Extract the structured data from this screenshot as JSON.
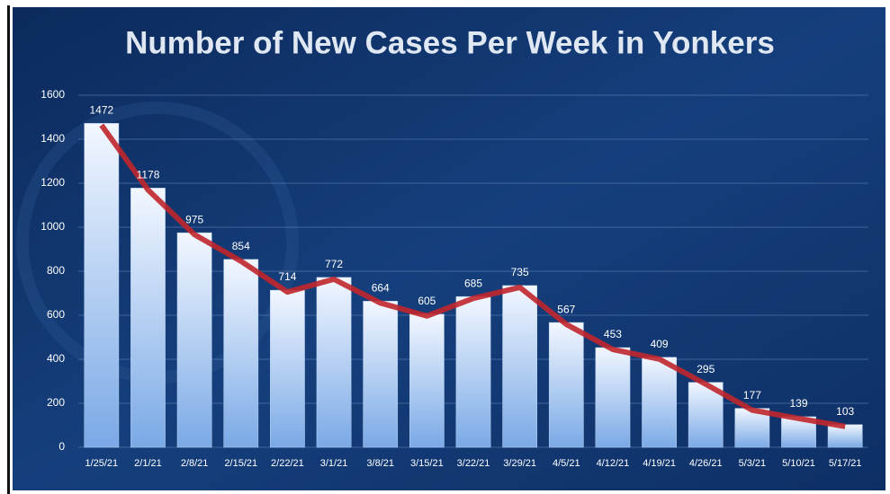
{
  "chart_data": {
    "type": "bar",
    "title": "Number of New Cases Per Week in Yonkers",
    "categories": [
      "1/25/21",
      "2/1/21",
      "2/8/21",
      "2/15/21",
      "2/22/21",
      "3/1/21",
      "3/8/21",
      "3/15/21",
      "3/22/21",
      "3/29/21",
      "4/5/21",
      "4/12/21",
      "4/19/21",
      "4/26/21",
      "5/3/21",
      "5/10/21",
      "5/17/21"
    ],
    "values": [
      1472,
      1178,
      975,
      854,
      714,
      772,
      664,
      605,
      685,
      735,
      567,
      453,
      409,
      295,
      177,
      139,
      103
    ],
    "color": "#b9d3f5",
    "trend_line": true,
    "trend_color": "#c0262c",
    "ylim": [
      0,
      1600
    ],
    "yticks": [
      0,
      200,
      400,
      600,
      800,
      1000,
      1200,
      1400,
      1600
    ],
    "grid": true
  }
}
